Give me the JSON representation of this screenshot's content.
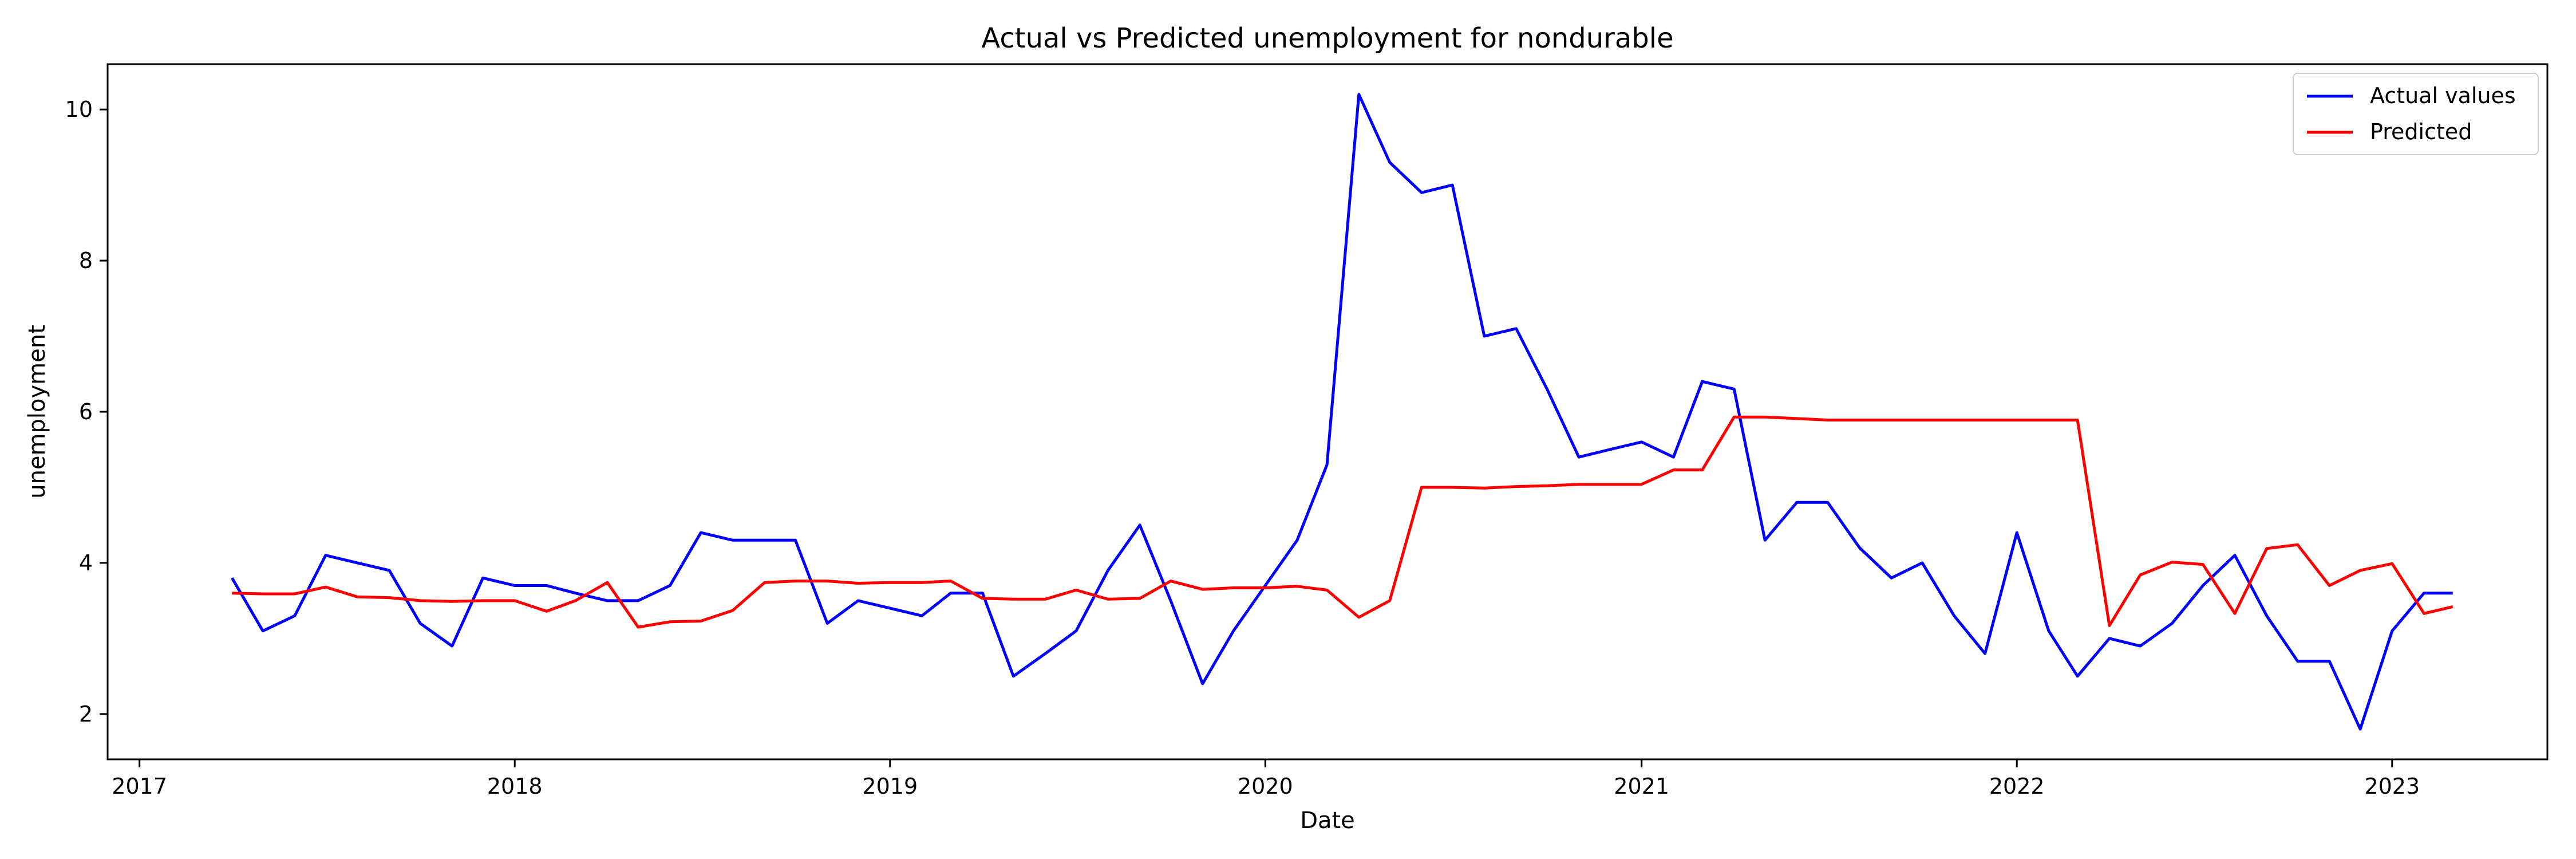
{
  "chart_data": {
    "type": "line",
    "title": "Actual vs Predicted unemployment for nondurable",
    "xlabel": "Date",
    "ylabel": "unemployment",
    "x_tick_labels": [
      "2017",
      "2018",
      "2019",
      "2020",
      "2021",
      "2022",
      "2023"
    ],
    "y_tick_labels": [
      "2",
      "4",
      "6",
      "8",
      "10"
    ],
    "xlim": [
      "2016-12-01",
      "2023-06-01"
    ],
    "ylim": [
      1.4,
      10.6
    ],
    "grid": false,
    "legend_position": "top-right",
    "x": [
      "2017-04-01",
      "2017-05-01",
      "2017-06-01",
      "2017-07-01",
      "2017-08-01",
      "2017-09-01",
      "2017-10-01",
      "2017-11-01",
      "2017-12-01",
      "2018-01-01",
      "2018-02-01",
      "2018-03-01",
      "2018-04-01",
      "2018-05-01",
      "2018-06-01",
      "2018-07-01",
      "2018-08-01",
      "2018-09-01",
      "2018-10-01",
      "2018-11-01",
      "2018-12-01",
      "2019-01-01",
      "2019-02-01",
      "2019-03-01",
      "2019-04-01",
      "2019-05-01",
      "2019-06-01",
      "2019-07-01",
      "2019-08-01",
      "2019-09-01",
      "2019-10-01",
      "2019-11-01",
      "2019-12-01",
      "2020-01-01",
      "2020-02-01",
      "2020-03-01",
      "2020-04-01",
      "2020-05-01",
      "2020-06-01",
      "2020-07-01",
      "2020-08-01",
      "2020-09-01",
      "2020-10-01",
      "2020-11-01",
      "2020-12-01",
      "2021-01-01",
      "2021-02-01",
      "2021-03-01",
      "2021-04-01",
      "2021-05-01",
      "2021-06-01",
      "2021-07-01",
      "2021-08-01",
      "2021-09-01",
      "2021-10-01",
      "2021-11-01",
      "2021-12-01",
      "2022-01-01",
      "2022-02-01",
      "2022-03-01",
      "2022-04-01",
      "2022-05-01",
      "2022-06-01",
      "2022-07-01",
      "2022-08-01",
      "2022-09-01",
      "2022-10-01",
      "2022-11-01",
      "2022-12-01",
      "2023-01-01",
      "2023-02-01",
      "2023-03-01"
    ],
    "series": [
      {
        "name": "Actual values",
        "color": "#0000ff",
        "values": [
          3.8,
          3.1,
          3.3,
          4.1,
          4.0,
          3.9,
          3.2,
          2.9,
          3.8,
          3.7,
          3.7,
          3.6,
          3.5,
          3.5,
          3.7,
          4.4,
          4.3,
          4.3,
          4.3,
          3.2,
          3.5,
          3.4,
          3.3,
          3.6,
          3.6,
          2.5,
          2.8,
          3.1,
          3.9,
          4.5,
          3.5,
          2.4,
          3.1,
          3.7,
          4.3,
          5.3,
          10.2,
          9.3,
          8.9,
          9.0,
          7.0,
          7.1,
          6.3,
          5.4,
          5.5,
          5.6,
          5.4,
          6.4,
          6.3,
          4.3,
          4.8,
          4.8,
          4.2,
          3.8,
          4.0,
          3.3,
          2.8,
          4.4,
          3.1,
          2.5,
          3.0,
          2.9,
          3.2,
          3.7,
          4.1,
          3.3,
          2.7,
          2.7,
          1.8,
          3.1,
          3.6,
          3.6
        ]
      },
      {
        "name": "Predicted",
        "color": "#ff0000",
        "values": [
          3.6,
          3.59,
          3.59,
          3.68,
          3.55,
          3.54,
          3.5,
          3.49,
          3.5,
          3.5,
          3.36,
          3.5,
          3.74,
          3.15,
          3.22,
          3.23,
          3.37,
          3.74,
          3.76,
          3.76,
          3.73,
          3.74,
          3.74,
          3.76,
          3.53,
          3.52,
          3.52,
          3.64,
          3.52,
          3.53,
          3.76,
          3.65,
          3.67,
          3.67,
          3.69,
          3.64,
          3.28,
          3.5,
          5.0,
          5.0,
          4.99,
          5.01,
          5.02,
          5.04,
          5.04,
          5.04,
          5.23,
          5.23,
          5.93,
          5.93,
          5.91,
          5.89,
          5.89,
          5.89,
          5.89,
          5.89,
          5.89,
          5.89,
          5.89,
          5.89,
          3.17,
          3.84,
          4.01,
          3.98,
          3.33,
          4.19,
          4.24,
          3.7,
          3.9,
          3.99,
          3.33,
          3.42
        ]
      }
    ]
  }
}
